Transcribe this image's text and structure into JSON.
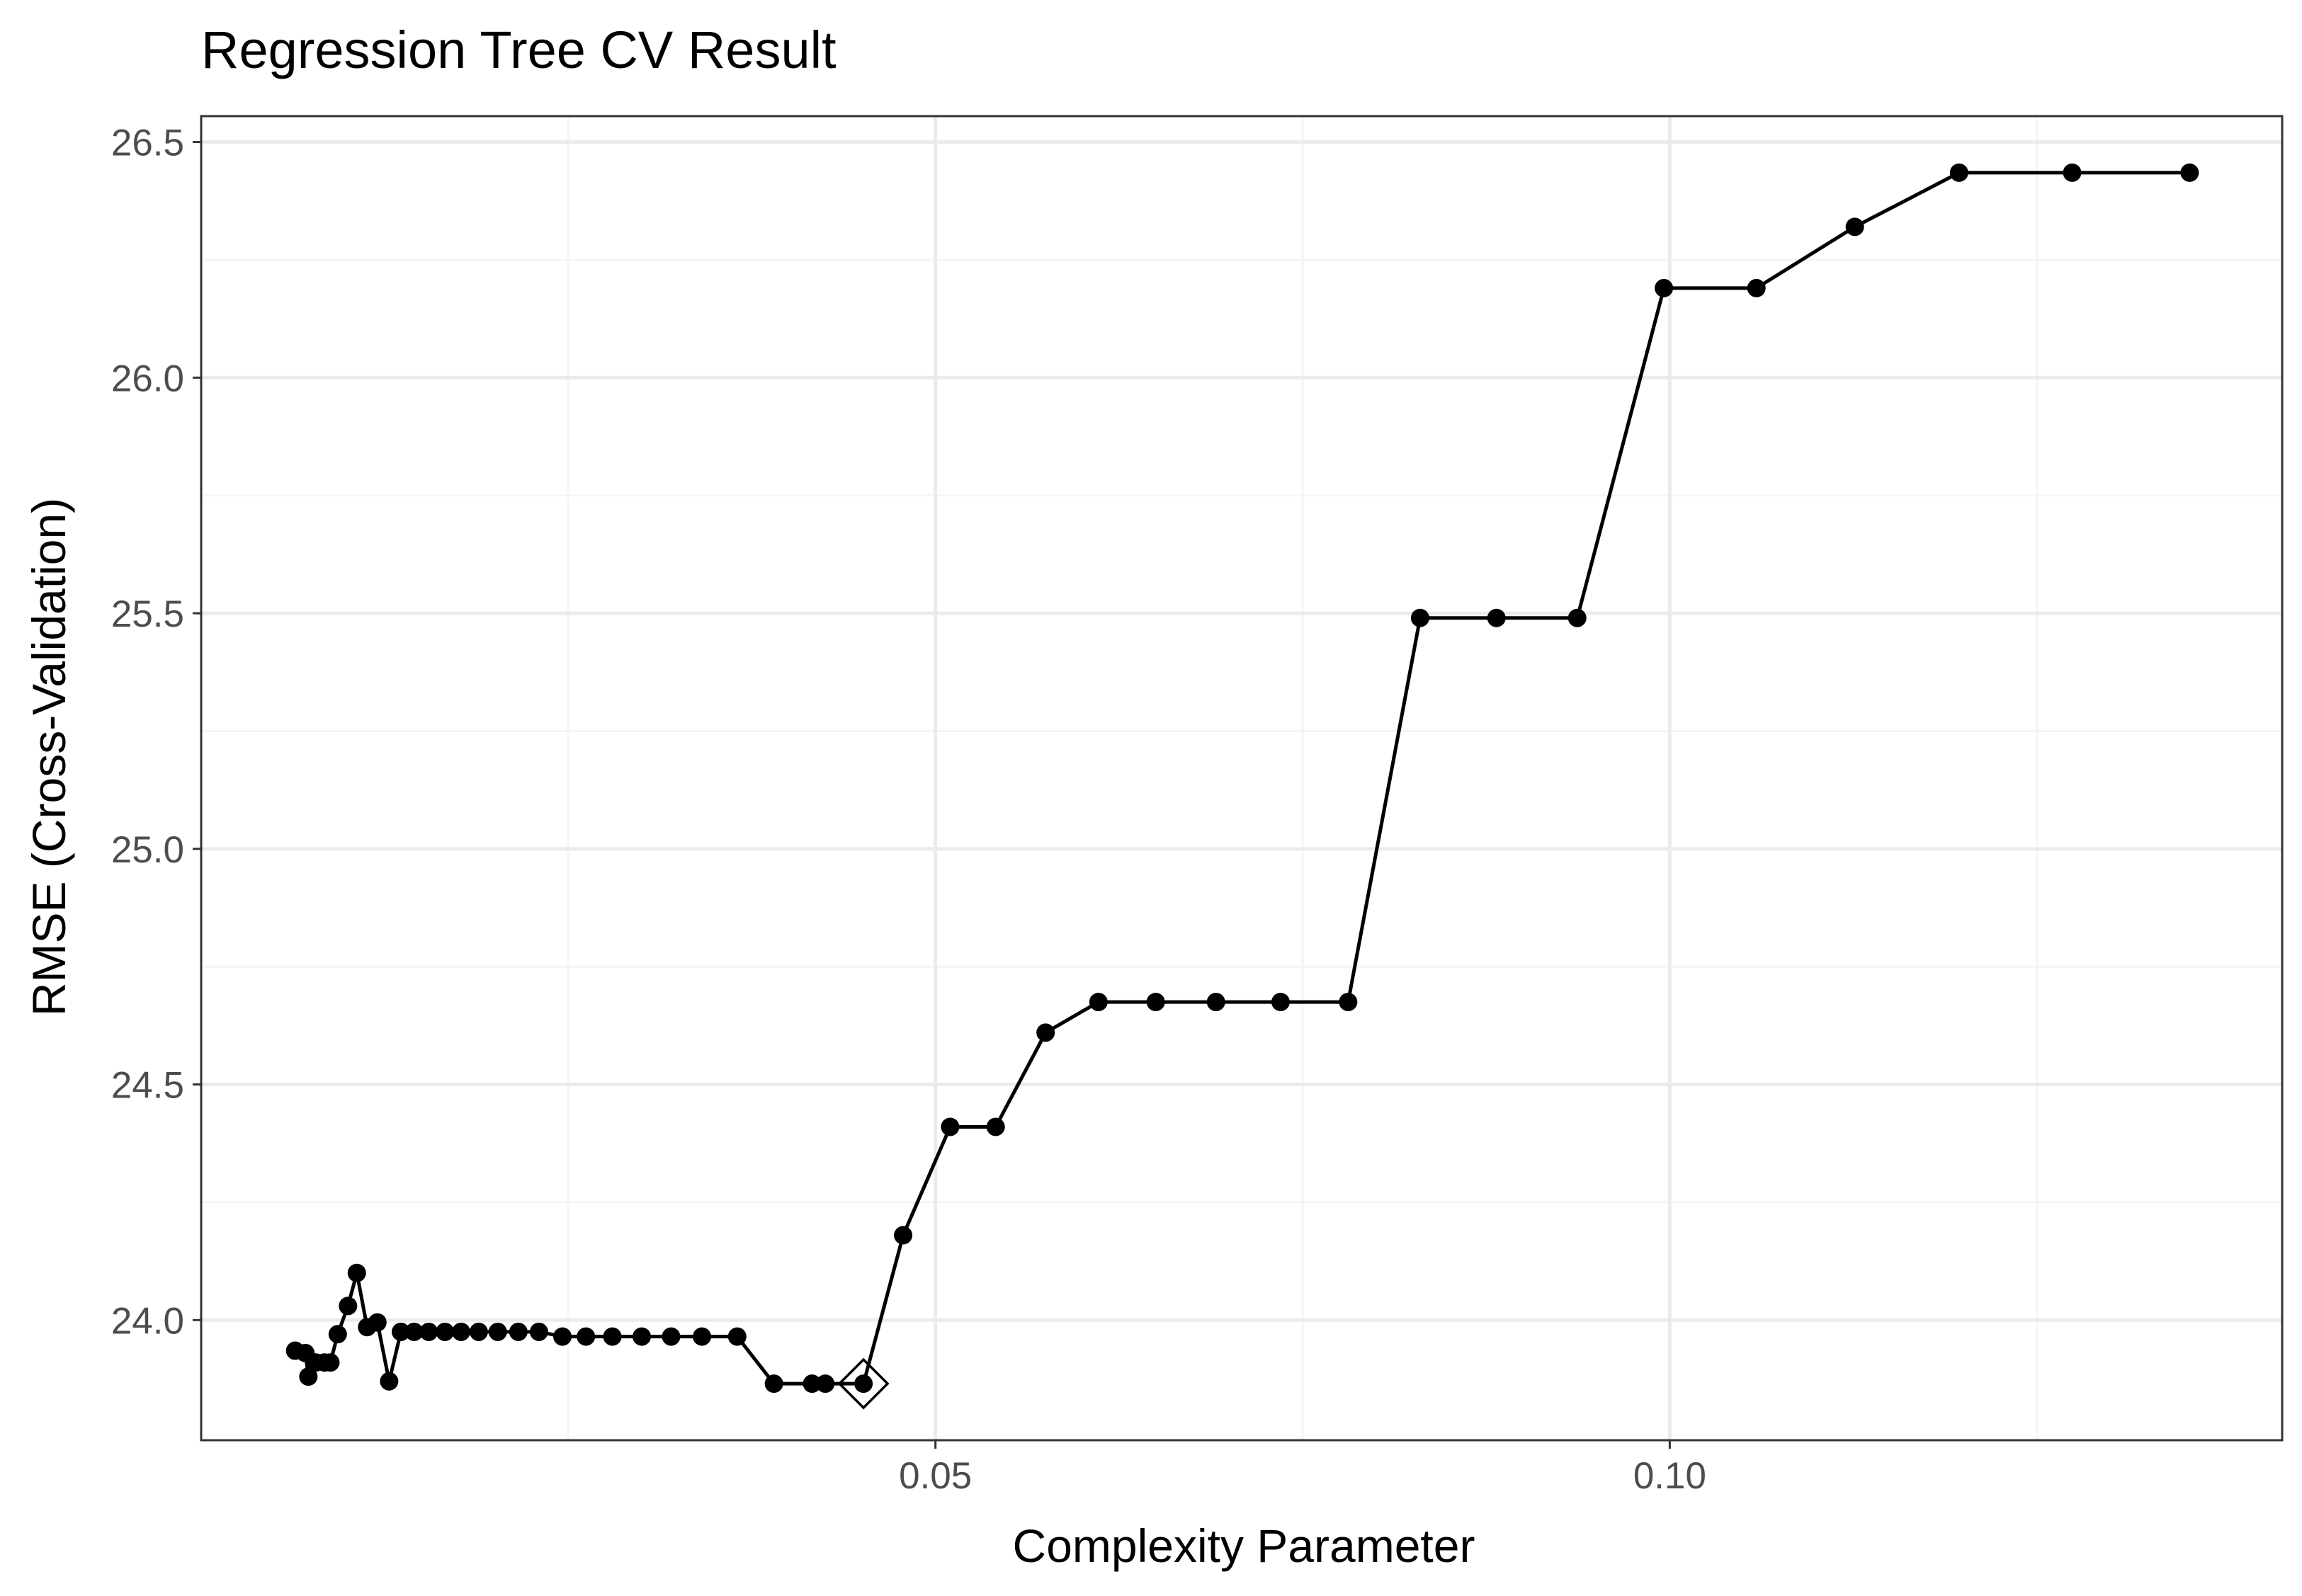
{
  "chart_data": {
    "type": "line",
    "title": "Regression Tree CV Result",
    "xlabel": "Complexity Parameter",
    "ylabel": "RMSE (Cross-Validation)",
    "xlim": [
      0.0,
      0.1417
    ],
    "ylim": [
      23.745,
      26.555
    ],
    "x_ticks": [
      0.05,
      0.1
    ],
    "x_tick_labels": [
      "0.05",
      "0.10"
    ],
    "x_minor_ticks": [
      0.025,
      0.075,
      0.125
    ],
    "y_ticks": [
      24.0,
      24.5,
      25.0,
      25.5,
      26.0,
      26.5
    ],
    "y_tick_labels": [
      "24.0",
      "24.5",
      "25.0",
      "25.5",
      "26.0",
      "26.5"
    ],
    "y_minor_ticks": [
      24.25,
      24.75,
      25.25,
      25.75,
      26.25
    ],
    "grid": true,
    "colors": {
      "line": "#000000",
      "point": "#000000",
      "panel_border": "#333333",
      "grid_major": "#ebebeb",
      "grid_minor": "#f5f5f5",
      "tick_label": "#4d4d4d",
      "axis_title": "#000000"
    },
    "highlight_marker": "diamond-open",
    "highlight": {
      "x": 0.0451,
      "y": 23.865
    },
    "series": [
      {
        "x": [
          0.0064,
          0.0071,
          0.0073,
          0.0078,
          0.0084,
          0.0088,
          0.0093,
          0.01,
          0.0106,
          0.0113,
          0.012,
          0.0128,
          0.0136,
          0.0145,
          0.0155,
          0.0166,
          0.0177,
          0.0189,
          0.0202,
          0.0216,
          0.023,
          0.0246,
          0.0262,
          0.028,
          0.03,
          0.032,
          0.0341,
          0.0365,
          0.039,
          0.0416,
          0.0425,
          0.0451,
          0.0478,
          0.051,
          0.0541,
          0.0575,
          0.0611,
          0.065,
          0.0691,
          0.0735,
          0.0781,
          0.083,
          0.0882,
          0.0937,
          0.0996,
          0.1059,
          0.1126,
          0.1197,
          0.1274,
          0.1354
        ],
        "y": [
          23.935,
          23.93,
          23.88,
          23.91,
          23.91,
          23.91,
          23.97,
          24.03,
          24.1,
          23.985,
          23.995,
          23.87,
          23.975,
          23.975,
          23.975,
          23.975,
          23.975,
          23.975,
          23.975,
          23.975,
          23.975,
          23.965,
          23.965,
          23.965,
          23.965,
          23.965,
          23.965,
          23.965,
          23.865,
          23.865,
          23.865,
          23.865,
          24.18,
          24.41,
          24.41,
          24.61,
          24.675,
          24.675,
          24.675,
          24.675,
          24.675,
          25.49,
          25.49,
          25.49,
          26.19,
          26.19,
          26.32,
          26.435,
          26.435,
          26.435
        ]
      }
    ]
  }
}
